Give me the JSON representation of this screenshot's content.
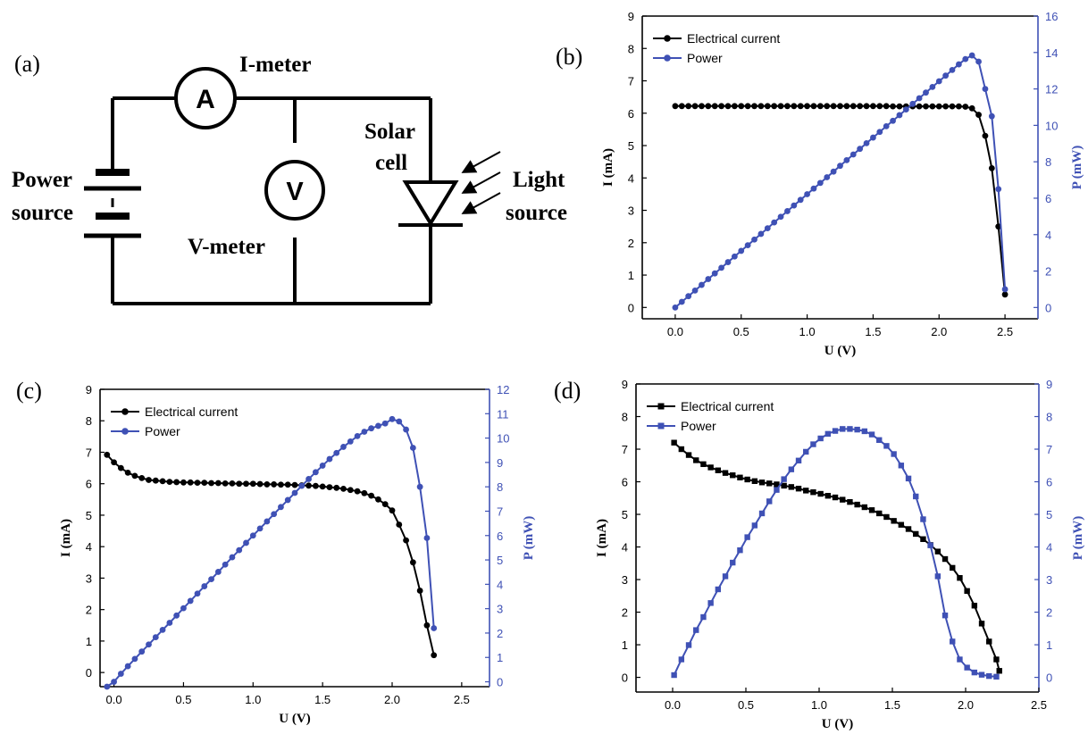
{
  "circuit": {
    "panel_label": "(a)",
    "i_meter_label": "I-meter",
    "v_meter_label": "V-meter",
    "ammeter_symbol": "A",
    "voltmeter_symbol": "V",
    "power_source_label": [
      "Power",
      "source"
    ],
    "solar_cell_label": [
      "Solar",
      "cell"
    ],
    "light_source_label": [
      "Light",
      "source"
    ]
  },
  "colors": {
    "current": "#000000",
    "power": "#3f51b5"
  },
  "chart_data": [
    {
      "panel_label": "(b)",
      "type": "line",
      "xlabel": "U (V)",
      "ylabel": "I (mA)",
      "y2label": "P (mW)",
      "xlim": [
        -0.25,
        2.75
      ],
      "ylim": [
        -0.35,
        9
      ],
      "y2lim": [
        -0.62,
        16
      ],
      "xticks": [
        "0.0",
        "0.5",
        "1.0",
        "1.5",
        "2.0",
        "2.5"
      ],
      "yticks": [
        "0",
        "1",
        "2",
        "3",
        "4",
        "5",
        "6",
        "7",
        "8",
        "9"
      ],
      "y2ticks": [
        "0",
        "2",
        "4",
        "6",
        "8",
        "10",
        "12",
        "14",
        "16"
      ],
      "legend_position": "top-left",
      "marker": "circle",
      "series": [
        {
          "name": "Electrical current",
          "axis": "left",
          "x": [
            0,
            0.05,
            0.1,
            0.15,
            0.2,
            0.25,
            0.3,
            0.35,
            0.4,
            0.45,
            0.5,
            0.55,
            0.6,
            0.65,
            0.7,
            0.75,
            0.8,
            0.85,
            0.9,
            0.95,
            1.0,
            1.05,
            1.1,
            1.15,
            1.2,
            1.25,
            1.3,
            1.35,
            1.4,
            1.45,
            1.5,
            1.55,
            1.6,
            1.65,
            1.7,
            1.75,
            1.8,
            1.85,
            1.9,
            1.95,
            2.0,
            2.05,
            2.1,
            2.15,
            2.2,
            2.25,
            2.3,
            2.35,
            2.4,
            2.45,
            2.5
          ],
          "y": [
            6.22,
            6.22,
            6.22,
            6.22,
            6.22,
            6.22,
            6.22,
            6.22,
            6.22,
            6.22,
            6.22,
            6.22,
            6.22,
            6.22,
            6.22,
            6.22,
            6.22,
            6.22,
            6.22,
            6.22,
            6.22,
            6.22,
            6.22,
            6.22,
            6.22,
            6.22,
            6.22,
            6.22,
            6.22,
            6.22,
            6.22,
            6.22,
            6.22,
            6.21,
            6.21,
            6.21,
            6.21,
            6.21,
            6.21,
            6.21,
            6.21,
            6.21,
            6.21,
            6.21,
            6.2,
            6.15,
            5.95,
            5.3,
            4.3,
            2.5,
            0.4
          ]
        },
        {
          "name": "Power",
          "axis": "right",
          "x": [
            0,
            0.05,
            0.1,
            0.15,
            0.2,
            0.25,
            0.3,
            0.35,
            0.4,
            0.45,
            0.5,
            0.55,
            0.6,
            0.65,
            0.7,
            0.75,
            0.8,
            0.85,
            0.9,
            0.95,
            1.0,
            1.05,
            1.1,
            1.15,
            1.2,
            1.25,
            1.3,
            1.35,
            1.4,
            1.45,
            1.5,
            1.55,
            1.6,
            1.65,
            1.7,
            1.75,
            1.8,
            1.85,
            1.9,
            1.95,
            2.0,
            2.05,
            2.1,
            2.15,
            2.2,
            2.25,
            2.3,
            2.35,
            2.4,
            2.45,
            2.5
          ],
          "y": [
            0,
            0.31,
            0.62,
            0.93,
            1.24,
            1.56,
            1.87,
            2.18,
            2.49,
            2.8,
            3.11,
            3.42,
            3.73,
            4.04,
            4.35,
            4.67,
            4.98,
            5.29,
            5.6,
            5.91,
            6.22,
            6.53,
            6.84,
            7.15,
            7.46,
            7.78,
            8.09,
            8.4,
            8.71,
            9.02,
            9.33,
            9.64,
            9.95,
            10.25,
            10.56,
            10.87,
            11.18,
            11.49,
            11.8,
            12.11,
            12.42,
            12.73,
            13.04,
            13.35,
            13.64,
            13.84,
            13.5,
            12.0,
            10.5,
            6.5,
            1.0
          ]
        }
      ]
    },
    {
      "panel_label": "(c)",
      "type": "line",
      "xlabel": "U (V)",
      "ylabel": "I (mA)",
      "y2label": "P (mW)",
      "xlim": [
        -0.1,
        2.7
      ],
      "ylim": [
        -0.45,
        9
      ],
      "y2lim": [
        -0.2,
        12
      ],
      "xticks": [
        "0.0",
        "0.5",
        "1.0",
        "1.5",
        "2.0",
        "2.5"
      ],
      "yticks": [
        "0",
        "1",
        "2",
        "3",
        "4",
        "5",
        "6",
        "7",
        "8",
        "9"
      ],
      "y2ticks": [
        "0",
        "1",
        "2",
        "3",
        "4",
        "5",
        "6",
        "7",
        "8",
        "9",
        "10",
        "11",
        "12"
      ],
      "legend_position": "top-left",
      "marker": "circle",
      "series": [
        {
          "name": "Electrical current",
          "axis": "left",
          "x": [
            -0.05,
            0.0,
            0.05,
            0.1,
            0.15,
            0.2,
            0.25,
            0.3,
            0.35,
            0.4,
            0.45,
            0.5,
            0.55,
            0.6,
            0.65,
            0.7,
            0.75,
            0.8,
            0.85,
            0.9,
            0.95,
            1.0,
            1.05,
            1.1,
            1.15,
            1.2,
            1.25,
            1.3,
            1.35,
            1.4,
            1.45,
            1.5,
            1.55,
            1.6,
            1.65,
            1.7,
            1.75,
            1.8,
            1.85,
            1.9,
            1.95,
            2.0,
            2.05,
            2.1,
            2.15,
            2.2,
            2.25,
            2.3
          ],
          "y": [
            6.92,
            6.68,
            6.5,
            6.35,
            6.25,
            6.18,
            6.12,
            6.1,
            6.08,
            6.06,
            6.05,
            6.04,
            6.04,
            6.03,
            6.03,
            6.02,
            6.02,
            6.01,
            6.01,
            6.0,
            6.0,
            6.0,
            5.99,
            5.98,
            5.98,
            5.97,
            5.97,
            5.96,
            5.95,
            5.94,
            5.93,
            5.91,
            5.89,
            5.87,
            5.84,
            5.8,
            5.76,
            5.7,
            5.62,
            5.5,
            5.35,
            5.15,
            4.7,
            4.2,
            3.5,
            2.6,
            1.5,
            0.55
          ]
        },
        {
          "name": "Power",
          "axis": "right",
          "x": [
            -0.05,
            0.0,
            0.05,
            0.1,
            0.15,
            0.2,
            0.25,
            0.3,
            0.35,
            0.4,
            0.45,
            0.5,
            0.55,
            0.6,
            0.65,
            0.7,
            0.75,
            0.8,
            0.85,
            0.9,
            0.95,
            1.0,
            1.05,
            1.1,
            1.15,
            1.2,
            1.25,
            1.3,
            1.35,
            1.4,
            1.45,
            1.5,
            1.55,
            1.6,
            1.65,
            1.7,
            1.75,
            1.8,
            1.85,
            1.9,
            1.95,
            2.0,
            2.05,
            2.1,
            2.15,
            2.2,
            2.25,
            2.3
          ],
          "y": [
            -0.35,
            0.0,
            0.33,
            0.64,
            0.94,
            1.24,
            1.53,
            1.83,
            2.13,
            2.42,
            2.72,
            3.02,
            3.32,
            3.62,
            3.92,
            4.21,
            4.51,
            4.81,
            5.11,
            5.4,
            5.7,
            6.0,
            6.29,
            6.58,
            6.88,
            7.17,
            7.46,
            7.75,
            8.04,
            8.32,
            8.6,
            8.87,
            9.14,
            9.39,
            9.64,
            9.86,
            10.08,
            10.26,
            10.4,
            10.5,
            10.6,
            10.78,
            10.68,
            10.35,
            9.6,
            8.0,
            5.9,
            2.2
          ]
        }
      ]
    },
    {
      "panel_label": "(d)",
      "type": "line",
      "xlabel": "U (V)",
      "ylabel": "I (mA)",
      "y2label": "P (mW)",
      "xlim": [
        -0.25,
        2.5
      ],
      "ylim": [
        -0.45,
        9
      ],
      "y2lim": [
        -0.45,
        9
      ],
      "xticks": [
        "0.0",
        "0.5",
        "1.0",
        "1.5",
        "2.0",
        "2.5"
      ],
      "yticks": [
        "0",
        "1",
        "2",
        "3",
        "4",
        "5",
        "6",
        "7",
        "8",
        "9"
      ],
      "y2ticks": [
        "0",
        "1",
        "2",
        "3",
        "4",
        "5",
        "6",
        "7",
        "8",
        "9"
      ],
      "legend_position": "top-left",
      "marker": "square",
      "series": [
        {
          "name": "Electrical current",
          "axis": "left",
          "x": [
            0.01,
            0.06,
            0.11,
            0.16,
            0.21,
            0.26,
            0.31,
            0.36,
            0.41,
            0.46,
            0.51,
            0.56,
            0.61,
            0.66,
            0.71,
            0.76,
            0.81,
            0.86,
            0.91,
            0.96,
            1.01,
            1.06,
            1.11,
            1.16,
            1.21,
            1.26,
            1.31,
            1.36,
            1.41,
            1.46,
            1.51,
            1.56,
            1.61,
            1.66,
            1.71,
            1.76,
            1.81,
            1.86,
            1.91,
            1.96,
            2.01,
            2.06,
            2.11,
            2.16,
            2.21,
            2.23
          ],
          "y": [
            7.2,
            7.0,
            6.82,
            6.66,
            6.54,
            6.44,
            6.35,
            6.27,
            6.2,
            6.13,
            6.07,
            6.02,
            5.98,
            5.95,
            5.92,
            5.88,
            5.84,
            5.79,
            5.73,
            5.68,
            5.63,
            5.57,
            5.52,
            5.45,
            5.38,
            5.3,
            5.22,
            5.13,
            5.03,
            4.92,
            4.8,
            4.68,
            4.55,
            4.4,
            4.24,
            4.06,
            3.86,
            3.63,
            3.36,
            3.05,
            2.65,
            2.2,
            1.65,
            1.1,
            0.55,
            0.2
          ]
        },
        {
          "name": "Power",
          "axis": "right",
          "x": [
            0.01,
            0.06,
            0.11,
            0.16,
            0.21,
            0.26,
            0.31,
            0.36,
            0.41,
            0.46,
            0.51,
            0.56,
            0.61,
            0.66,
            0.71,
            0.76,
            0.81,
            0.86,
            0.91,
            0.96,
            1.01,
            1.06,
            1.11,
            1.16,
            1.21,
            1.26,
            1.31,
            1.36,
            1.41,
            1.46,
            1.51,
            1.56,
            1.61,
            1.66,
            1.71,
            1.76,
            1.81,
            1.86,
            1.91,
            1.96,
            2.01,
            2.06,
            2.11,
            2.16,
            2.21
          ],
          "y": [
            0.07,
            0.55,
            0.99,
            1.45,
            1.85,
            2.28,
            2.7,
            3.1,
            3.52,
            3.9,
            4.3,
            4.66,
            5.03,
            5.4,
            5.75,
            6.08,
            6.38,
            6.65,
            6.92,
            7.15,
            7.33,
            7.47,
            7.56,
            7.62,
            7.62,
            7.6,
            7.55,
            7.45,
            7.28,
            7.1,
            6.85,
            6.5,
            6.1,
            5.55,
            4.85,
            4.05,
            3.1,
            1.9,
            1.1,
            0.55,
            0.3,
            0.15,
            0.08,
            0.04,
            0.02
          ]
        }
      ]
    }
  ]
}
